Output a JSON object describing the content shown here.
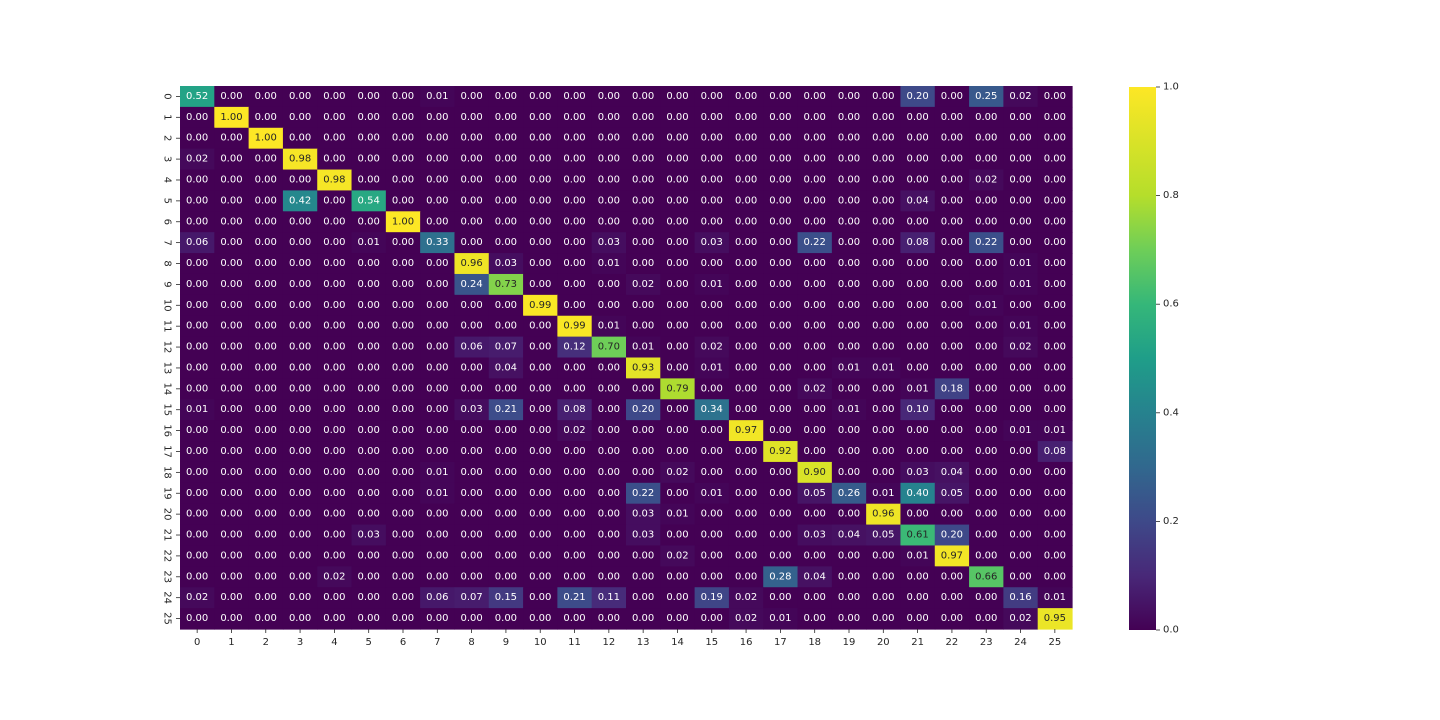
{
  "chart_data": {
    "type": "heatmap",
    "colormap": "viridis",
    "value_range": [
      0.0,
      1.0
    ],
    "value_format": "0.00",
    "x_labels": [
      "0",
      "1",
      "2",
      "3",
      "4",
      "5",
      "6",
      "7",
      "8",
      "9",
      "10",
      "11",
      "12",
      "13",
      "14",
      "15",
      "16",
      "17",
      "18",
      "19",
      "20",
      "21",
      "22",
      "23",
      "24",
      "25"
    ],
    "y_labels": [
      "0",
      "1",
      "2",
      "3",
      "4",
      "5",
      "6",
      "7",
      "8",
      "9",
      "10",
      "11",
      "12",
      "13",
      "14",
      "15",
      "16",
      "17",
      "18",
      "19",
      "20",
      "21",
      "22",
      "23",
      "24",
      "25"
    ],
    "colorbar_ticks": [
      "0.0",
      "0.2",
      "0.4",
      "0.6",
      "0.8",
      "1.0"
    ],
    "values": [
      [
        0.52,
        0.0,
        0.0,
        0.0,
        0.0,
        0.0,
        0.0,
        0.01,
        0.0,
        0.0,
        0.0,
        0.0,
        0.0,
        0.0,
        0.0,
        0.0,
        0.0,
        0.0,
        0.0,
        0.0,
        0.0,
        0.2,
        0.0,
        0.25,
        0.02,
        0.0
      ],
      [
        0.0,
        1.0,
        0.0,
        0.0,
        0.0,
        0.0,
        0.0,
        0.0,
        0.0,
        0.0,
        0.0,
        0.0,
        0.0,
        0.0,
        0.0,
        0.0,
        0.0,
        0.0,
        0.0,
        0.0,
        0.0,
        0.0,
        0.0,
        0.0,
        0.0,
        0.0
      ],
      [
        0.0,
        0.0,
        1.0,
        0.0,
        0.0,
        0.0,
        0.0,
        0.0,
        0.0,
        0.0,
        0.0,
        0.0,
        0.0,
        0.0,
        0.0,
        0.0,
        0.0,
        0.0,
        0.0,
        0.0,
        0.0,
        0.0,
        0.0,
        0.0,
        0.0,
        0.0
      ],
      [
        0.02,
        0.0,
        0.0,
        0.98,
        0.0,
        0.0,
        0.0,
        0.0,
        0.0,
        0.0,
        0.0,
        0.0,
        0.0,
        0.0,
        0.0,
        0.0,
        0.0,
        0.0,
        0.0,
        0.0,
        0.0,
        0.0,
        0.0,
        0.0,
        0.0,
        0.0
      ],
      [
        0.0,
        0.0,
        0.0,
        0.0,
        0.98,
        0.0,
        0.0,
        0.0,
        0.0,
        0.0,
        0.0,
        0.0,
        0.0,
        0.0,
        0.0,
        0.0,
        0.0,
        0.0,
        0.0,
        0.0,
        0.0,
        0.0,
        0.0,
        0.02,
        0.0,
        0.0
      ],
      [
        0.0,
        0.0,
        0.0,
        0.42,
        0.0,
        0.54,
        0.0,
        0.0,
        0.0,
        0.0,
        0.0,
        0.0,
        0.0,
        0.0,
        0.0,
        0.0,
        0.0,
        0.0,
        0.0,
        0.0,
        0.0,
        0.04,
        0.0,
        0.0,
        0.0,
        0.0
      ],
      [
        0.0,
        0.0,
        0.0,
        0.0,
        0.0,
        0.0,
        1.0,
        0.0,
        0.0,
        0.0,
        0.0,
        0.0,
        0.0,
        0.0,
        0.0,
        0.0,
        0.0,
        0.0,
        0.0,
        0.0,
        0.0,
        0.0,
        0.0,
        0.0,
        0.0,
        0.0
      ],
      [
        0.06,
        0.0,
        0.0,
        0.0,
        0.0,
        0.01,
        0.0,
        0.33,
        0.0,
        0.0,
        0.0,
        0.0,
        0.03,
        0.0,
        0.0,
        0.03,
        0.0,
        0.0,
        0.22,
        0.0,
        0.0,
        0.08,
        0.0,
        0.22,
        0.0,
        0.0
      ],
      [
        0.0,
        0.0,
        0.0,
        0.0,
        0.0,
        0.0,
        0.0,
        0.0,
        0.96,
        0.03,
        0.0,
        0.0,
        0.01,
        0.0,
        0.0,
        0.0,
        0.0,
        0.0,
        0.0,
        0.0,
        0.0,
        0.0,
        0.0,
        0.0,
        0.01,
        0.0
      ],
      [
        0.0,
        0.0,
        0.0,
        0.0,
        0.0,
        0.0,
        0.0,
        0.0,
        0.24,
        0.73,
        0.0,
        0.0,
        0.0,
        0.02,
        0.0,
        0.01,
        0.0,
        0.0,
        0.0,
        0.0,
        0.0,
        0.0,
        0.0,
        0.0,
        0.01,
        0.0
      ],
      [
        0.0,
        0.0,
        0.0,
        0.0,
        0.0,
        0.0,
        0.0,
        0.0,
        0.0,
        0.0,
        0.99,
        0.0,
        0.0,
        0.0,
        0.0,
        0.0,
        0.0,
        0.0,
        0.0,
        0.0,
        0.0,
        0.0,
        0.0,
        0.01,
        0.0,
        0.0
      ],
      [
        0.0,
        0.0,
        0.0,
        0.0,
        0.0,
        0.0,
        0.0,
        0.0,
        0.0,
        0.0,
        0.0,
        0.99,
        0.01,
        0.0,
        0.0,
        0.0,
        0.0,
        0.0,
        0.0,
        0.0,
        0.0,
        0.0,
        0.0,
        0.0,
        0.01,
        0.0
      ],
      [
        0.0,
        0.0,
        0.0,
        0.0,
        0.0,
        0.0,
        0.0,
        0.0,
        0.06,
        0.07,
        0.0,
        0.12,
        0.7,
        0.01,
        0.0,
        0.02,
        0.0,
        0.0,
        0.0,
        0.0,
        0.0,
        0.0,
        0.0,
        0.0,
        0.02,
        0.0
      ],
      [
        0.0,
        0.0,
        0.0,
        0.0,
        0.0,
        0.0,
        0.0,
        0.0,
        0.0,
        0.04,
        0.0,
        0.0,
        0.0,
        0.93,
        0.0,
        0.01,
        0.0,
        0.0,
        0.0,
        0.01,
        0.01,
        0.0,
        0.0,
        0.0,
        0.0,
        0.0
      ],
      [
        0.0,
        0.0,
        0.0,
        0.0,
        0.0,
        0.0,
        0.0,
        0.0,
        0.0,
        0.0,
        0.0,
        0.0,
        0.0,
        0.0,
        0.79,
        0.0,
        0.0,
        0.0,
        0.02,
        0.0,
        0.0,
        0.01,
        0.18,
        0.0,
        0.0,
        0.0
      ],
      [
        0.01,
        0.0,
        0.0,
        0.0,
        0.0,
        0.0,
        0.0,
        0.0,
        0.03,
        0.21,
        0.0,
        0.08,
        0.0,
        0.2,
        0.0,
        0.34,
        0.0,
        0.0,
        0.0,
        0.01,
        0.0,
        0.1,
        0.0,
        0.0,
        0.0,
        0.0
      ],
      [
        0.0,
        0.0,
        0.0,
        0.0,
        0.0,
        0.0,
        0.0,
        0.0,
        0.0,
        0.0,
        0.0,
        0.02,
        0.0,
        0.0,
        0.0,
        0.0,
        0.97,
        0.0,
        0.0,
        0.0,
        0.0,
        0.0,
        0.0,
        0.0,
        0.01,
        0.01
      ],
      [
        0.0,
        0.0,
        0.0,
        0.0,
        0.0,
        0.0,
        0.0,
        0.0,
        0.0,
        0.0,
        0.0,
        0.0,
        0.0,
        0.0,
        0.0,
        0.0,
        0.0,
        0.92,
        0.0,
        0.0,
        0.0,
        0.0,
        0.0,
        0.0,
        0.0,
        0.08
      ],
      [
        0.0,
        0.0,
        0.0,
        0.0,
        0.0,
        0.0,
        0.0,
        0.01,
        0.0,
        0.0,
        0.0,
        0.0,
        0.0,
        0.0,
        0.02,
        0.0,
        0.0,
        0.0,
        0.9,
        0.0,
        0.0,
        0.03,
        0.04,
        0.0,
        0.0,
        0.0
      ],
      [
        0.0,
        0.0,
        0.0,
        0.0,
        0.0,
        0.0,
        0.0,
        0.01,
        0.0,
        0.0,
        0.0,
        0.0,
        0.0,
        0.22,
        0.0,
        0.01,
        0.0,
        0.0,
        0.05,
        0.26,
        0.01,
        0.4,
        0.05,
        0.0,
        0.0,
        0.0
      ],
      [
        0.0,
        0.0,
        0.0,
        0.0,
        0.0,
        0.0,
        0.0,
        0.0,
        0.0,
        0.0,
        0.0,
        0.0,
        0.0,
        0.03,
        0.01,
        0.0,
        0.0,
        0.0,
        0.0,
        0.0,
        0.96,
        0.0,
        0.0,
        0.0,
        0.0,
        0.0
      ],
      [
        0.0,
        0.0,
        0.0,
        0.0,
        0.0,
        0.03,
        0.0,
        0.0,
        0.0,
        0.0,
        0.0,
        0.0,
        0.0,
        0.03,
        0.0,
        0.0,
        0.0,
        0.0,
        0.03,
        0.04,
        0.05,
        0.61,
        0.2,
        0.0,
        0.0,
        0.0
      ],
      [
        0.0,
        0.0,
        0.0,
        0.0,
        0.0,
        0.0,
        0.0,
        0.0,
        0.0,
        0.0,
        0.0,
        0.0,
        0.0,
        0.0,
        0.02,
        0.0,
        0.0,
        0.0,
        0.0,
        0.0,
        0.0,
        0.01,
        0.97,
        0.0,
        0.0,
        0.0
      ],
      [
        0.0,
        0.0,
        0.0,
        0.0,
        0.02,
        0.0,
        0.0,
        0.0,
        0.0,
        0.0,
        0.0,
        0.0,
        0.0,
        0.0,
        0.0,
        0.0,
        0.0,
        0.28,
        0.04,
        0.0,
        0.0,
        0.0,
        0.0,
        0.66,
        0.0,
        0.0
      ],
      [
        0.02,
        0.0,
        0.0,
        0.0,
        0.0,
        0.0,
        0.0,
        0.06,
        0.07,
        0.15,
        0.0,
        0.21,
        0.11,
        0.0,
        0.0,
        0.19,
        0.02,
        0.0,
        0.0,
        0.0,
        0.0,
        0.0,
        0.0,
        0.0,
        0.16,
        0.01
      ],
      [
        0.0,
        0.0,
        0.0,
        0.0,
        0.0,
        0.0,
        0.0,
        0.0,
        0.0,
        0.0,
        0.0,
        0.0,
        0.0,
        0.0,
        0.0,
        0.0,
        0.02,
        0.01,
        0.0,
        0.0,
        0.0,
        0.0,
        0.0,
        0.0,
        0.02,
        0.95
      ]
    ],
    "colors": {
      "text_light": "#ffffff",
      "text_dark": "#262626",
      "axis_text": "#262626"
    }
  }
}
